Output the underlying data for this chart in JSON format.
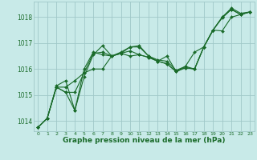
{
  "background_color": "#c8eae8",
  "grid_color": "#a0c8c8",
  "line_color": "#1a6b2a",
  "marker_color": "#1a6b2a",
  "xlabel": "Graphe pression niveau de la mer (hPa)",
  "xlabel_fontsize": 6.5,
  "xlabel_color": "#1a6b2a",
  "xlim": [
    -0.5,
    23.5
  ],
  "ylim": [
    1013.6,
    1018.6
  ],
  "yticks": [
    1014,
    1015,
    1016,
    1017,
    1018
  ],
  "xticks": [
    0,
    1,
    2,
    3,
    4,
    5,
    6,
    7,
    8,
    9,
    10,
    11,
    12,
    13,
    14,
    15,
    16,
    17,
    18,
    19,
    20,
    21,
    22,
    23
  ],
  "series": [
    [
      1013.75,
      1014.1,
      1015.3,
      1015.3,
      1015.55,
      1015.85,
      1016.0,
      1016.0,
      1016.5,
      1016.6,
      1016.5,
      1016.55,
      1016.45,
      1016.3,
      1016.2,
      1015.9,
      1016.05,
      1016.0,
      1016.85,
      1017.5,
      1017.97,
      1018.3,
      1018.1,
      1018.2
    ],
    [
      1013.75,
      1014.1,
      1015.3,
      1015.1,
      1015.1,
      1015.85,
      1016.6,
      1016.65,
      1016.5,
      1016.6,
      1016.85,
      1016.85,
      1016.5,
      1016.3,
      1016.5,
      1015.9,
      1016.1,
      1016.65,
      1016.85,
      1017.5,
      1018.0,
      1018.3,
      1018.1,
      1018.2
    ],
    [
      1013.75,
      1014.1,
      1015.3,
      1015.1,
      1014.4,
      1015.7,
      1016.55,
      1016.9,
      1016.5,
      1016.65,
      1016.85,
      1016.9,
      1016.5,
      1016.35,
      1016.3,
      1015.95,
      1016.1,
      1016.0,
      1016.85,
      1017.5,
      1018.0,
      1018.35,
      1018.15,
      1018.2
    ],
    [
      1013.75,
      1014.1,
      1015.35,
      1015.55,
      1014.4,
      1016.0,
      1016.65,
      1016.55,
      1016.5,
      1016.6,
      1016.7,
      1016.55,
      1016.45,
      1016.3,
      1016.2,
      1015.9,
      1016.05,
      1016.0,
      1016.85,
      1017.5,
      1017.47,
      1018.0,
      1018.1,
      1018.2
    ]
  ]
}
